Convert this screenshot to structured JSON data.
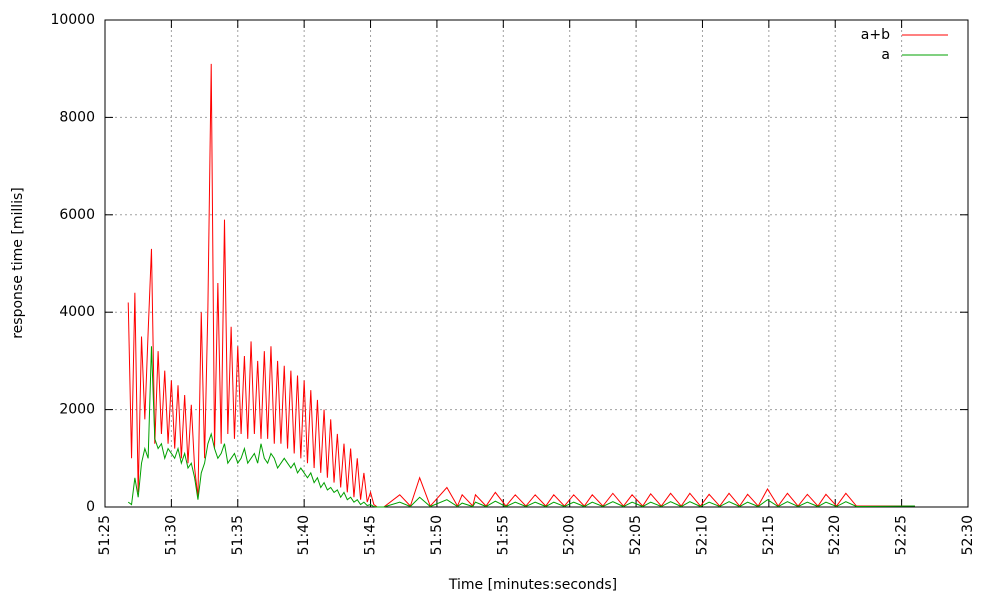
{
  "chart_data": {
    "type": "line",
    "xlabel": "Time [minutes:seconds]",
    "ylabel": "response time [millis]",
    "x": [
      3086.75,
      3087,
      3087.25,
      3087.5,
      3087.75,
      3088,
      3088.25,
      3088.5,
      3088.75,
      3089,
      3089.25,
      3089.5,
      3089.75,
      3090,
      3090.25,
      3090.5,
      3090.75,
      3091,
      3091.25,
      3091.5,
      3091.75,
      3092,
      3092.25,
      3092.5,
      3092.75,
      3093,
      3093.25,
      3093.5,
      3093.75,
      3094,
      3094.25,
      3094.5,
      3094.75,
      3095,
      3095.25,
      3095.5,
      3095.75,
      3096,
      3096.25,
      3096.5,
      3096.75,
      3097,
      3097.25,
      3097.5,
      3097.75,
      3098,
      3098.25,
      3098.5,
      3098.75,
      3099,
      3099.25,
      3099.5,
      3099.75,
      3100,
      3100.25,
      3100.5,
      3100.75,
      3101,
      3101.25,
      3101.5,
      3101.75,
      3102,
      3102.25,
      3102.5,
      3102.75,
      3103,
      3103.25,
      3103.5,
      3103.75,
      3104,
      3104.25,
      3104.5,
      3104.75,
      3105,
      3105.25,
      3105.5,
      3106,
      3107.2,
      3108,
      3108.7,
      3109.5,
      3110.75,
      3111.55,
      3111.9,
      3112.7,
      3112.9,
      3113.7,
      3114.4,
      3115.2,
      3115.9,
      3116.7,
      3117.4,
      3118.2,
      3118.8,
      3119.6,
      3120.3,
      3121.1,
      3121.7,
      3122.5,
      3123.25,
      3124.05,
      3124.7,
      3125.5,
      3126.1,
      3126.9,
      3127.6,
      3128.4,
      3129.05,
      3129.85,
      3130.5,
      3131.3,
      3132,
      3132.8,
      3133.4,
      3134.2,
      3134.9,
      3135.7,
      3136.4,
      3137.2,
      3137.9,
      3138.7,
      3139.3,
      3140.1,
      3140.8,
      3141.6,
      3146
    ],
    "series": [
      {
        "name": "a+b",
        "color": "#ff0000",
        "values": [
          4200,
          1000,
          4400,
          300,
          3500,
          1800,
          3600,
          5300,
          1300,
          3200,
          1500,
          2800,
          1300,
          2600,
          1200,
          2500,
          1000,
          2300,
          900,
          2100,
          800,
          200,
          4000,
          1000,
          4100,
          9100,
          1200,
          4600,
          1300,
          5900,
          1500,
          3700,
          1400,
          3300,
          1500,
          3100,
          1400,
          3400,
          1500,
          3000,
          1400,
          3200,
          1400,
          3300,
          1300,
          3000,
          1300,
          2900,
          1200,
          2800,
          1100,
          2700,
          1000,
          2600,
          900,
          2400,
          800,
          2200,
          700,
          2000,
          600,
          1800,
          500,
          1500,
          400,
          1300,
          300,
          1200,
          200,
          1000,
          150,
          700,
          100,
          300,
          50,
          0,
          0,
          250,
          20,
          600,
          20,
          400,
          20,
          250,
          20,
          250,
          20,
          300,
          20,
          250,
          20,
          250,
          20,
          250,
          20,
          250,
          20,
          250,
          20,
          280,
          20,
          250,
          20,
          270,
          20,
          280,
          20,
          280,
          20,
          260,
          20,
          280,
          20,
          260,
          20,
          370,
          20,
          280,
          20,
          260,
          20,
          260,
          20,
          280,
          20,
          20
        ]
      },
      {
        "name": "a",
        "color": "#00a000",
        "values": [
          100,
          50,
          600,
          200,
          900,
          1200,
          1000,
          3300,
          1400,
          1200,
          1300,
          1000,
          1200,
          1100,
          1000,
          1200,
          900,
          1100,
          800,
          900,
          600,
          150,
          700,
          900,
          1300,
          1500,
          1200,
          1000,
          1100,
          1300,
          900,
          1000,
          1100,
          900,
          1000,
          1200,
          900,
          1000,
          1100,
          900,
          1300,
          1000,
          900,
          1100,
          1000,
          800,
          900,
          1000,
          900,
          800,
          900,
          700,
          800,
          700,
          600,
          700,
          500,
          600,
          400,
          500,
          350,
          400,
          300,
          350,
          200,
          300,
          150,
          200,
          100,
          150,
          50,
          100,
          30,
          50,
          10,
          0,
          0,
          100,
          10,
          200,
          10,
          150,
          10,
          80,
          10,
          100,
          10,
          120,
          10,
          100,
          10,
          100,
          10,
          100,
          10,
          100,
          10,
          100,
          10,
          110,
          10,
          100,
          10,
          100,
          10,
          110,
          10,
          110,
          10,
          100,
          10,
          110,
          10,
          100,
          10,
          150,
          10,
          110,
          10,
          100,
          10,
          100,
          10,
          110,
          10,
          20
        ]
      }
    ],
    "xlim": [
      3085,
      3150
    ],
    "xticks": [
      {
        "value": 3085,
        "label": "51:25"
      },
      {
        "value": 3090,
        "label": "51:30"
      },
      {
        "value": 3095,
        "label": "51:35"
      },
      {
        "value": 3100,
        "label": "51:40"
      },
      {
        "value": 3105,
        "label": "51:45"
      },
      {
        "value": 3110,
        "label": "51:50"
      },
      {
        "value": 3115,
        "label": "51:55"
      },
      {
        "value": 3120,
        "label": "52:00"
      },
      {
        "value": 3125,
        "label": "52:05"
      },
      {
        "value": 3130,
        "label": "52:10"
      },
      {
        "value": 3135,
        "label": "52:15"
      },
      {
        "value": 3140,
        "label": "52:20"
      },
      {
        "value": 3145,
        "label": "52:25"
      },
      {
        "value": 3150,
        "label": "52:30"
      }
    ],
    "ylim": [
      0,
      10000
    ],
    "yticks": [
      0,
      2000,
      4000,
      6000,
      8000,
      10000
    ],
    "grid": true,
    "legend": "top-right"
  }
}
